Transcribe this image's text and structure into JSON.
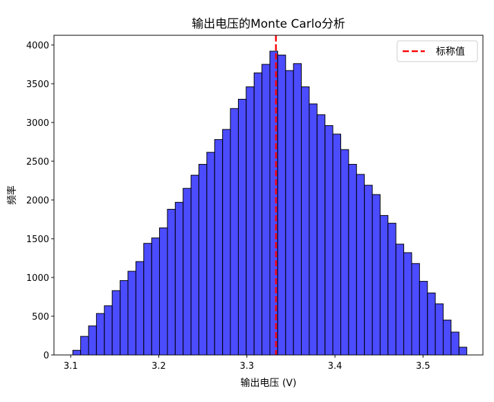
{
  "chart_data": {
    "type": "histogram",
    "title": "输出电压的Monte Carlo分析",
    "x_label": "输出电压 (V)",
    "y_label": "频率",
    "bins": [
      3.1024,
      3.1113,
      3.1203,
      3.1292,
      3.1382,
      3.1471,
      3.1561,
      3.165,
      3.174,
      3.1829,
      3.1919,
      3.2008,
      3.2098,
      3.2187,
      3.2276,
      3.2366,
      3.2455,
      3.2545,
      3.2634,
      3.2724,
      3.2813,
      3.2903,
      3.2992,
      3.3082,
      3.3171,
      3.3261,
      3.335,
      3.344,
      3.3529,
      3.3618,
      3.3708,
      3.3797,
      3.3887,
      3.3976,
      3.4066,
      3.4155,
      3.4245,
      3.4334,
      3.4424,
      3.4513,
      3.4602,
      3.4692,
      3.4781,
      3.4871,
      3.496,
      3.505,
      3.5139,
      3.5229,
      3.5318,
      3.5408,
      3.5497
    ],
    "values": [
      60,
      240,
      375,
      535,
      635,
      830,
      960,
      1080,
      1205,
      1440,
      1510,
      1640,
      1880,
      1970,
      2150,
      2320,
      2460,
      2615,
      2780,
      2910,
      3180,
      3300,
      3460,
      3640,
      3750,
      3920,
      3870,
      3670,
      3760,
      3460,
      3240,
      3100,
      2960,
      2850,
      2650,
      2460,
      2330,
      2190,
      2070,
      1800,
      1700,
      1430,
      1320,
      1180,
      950,
      800,
      660,
      450,
      295,
      100
    ],
    "color": "#0000ff",
    "edge_color": "#000000",
    "reference_line": {
      "value": 3.333,
      "label": "标称值",
      "color": "#ff0000"
    },
    "legend": "upper right",
    "xlim": [
      3.081,
      3.568
    ],
    "xticks": [
      3.1,
      3.2,
      3.3,
      3.4,
      3.5
    ],
    "ylim": [
      0,
      4125
    ],
    "yticks": [
      0,
      500,
      1000,
      1500,
      2000,
      2500,
      3000,
      3500,
      4000
    ]
  }
}
